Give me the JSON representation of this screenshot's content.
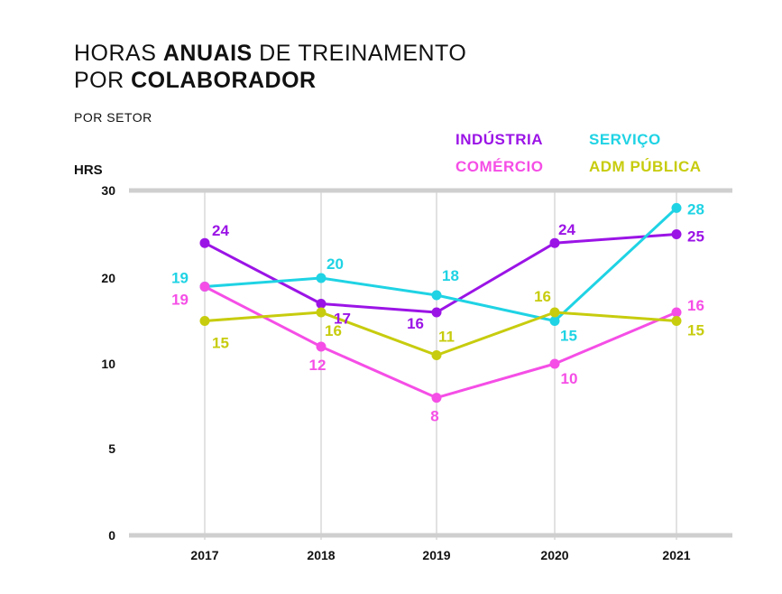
{
  "chart_data": {
    "type": "line",
    "title_parts": [
      {
        "text": "HORAS ",
        "bold": false
      },
      {
        "text": "ANUAIS",
        "bold": true
      },
      {
        "text": " DE TREINAMENTO",
        "bold": false
      },
      {
        "text": "POR ",
        "bold": false,
        "newline": true
      },
      {
        "text": "COLABORADOR",
        "bold": true
      }
    ],
    "subtitle": "POR SETOR",
    "ylabel": "HRS",
    "categories": [
      "2017",
      "2018",
      "2019",
      "2020",
      "2021"
    ],
    "y_ticks": [
      "0",
      "5",
      "10",
      "20",
      "30"
    ],
    "series": [
      {
        "name": "INDÚSTRIA",
        "color": "#9b14e6",
        "values": [
          24,
          17,
          16,
          24,
          25
        ]
      },
      {
        "name": "SERVIÇO",
        "color": "#1fd3e4",
        "values": [
          19,
          20,
          18,
          15,
          28
        ]
      },
      {
        "name": "COMÉRCIO",
        "color": "#f54ee6",
        "values": [
          19,
          12,
          8,
          10,
          16
        ]
      },
      {
        "name": "ADM PÚBLICA",
        "color": "#c7cc0e",
        "values": [
          15,
          16,
          11,
          16,
          15
        ]
      }
    ],
    "grid": "vertical",
    "legend_position": "top-right"
  }
}
